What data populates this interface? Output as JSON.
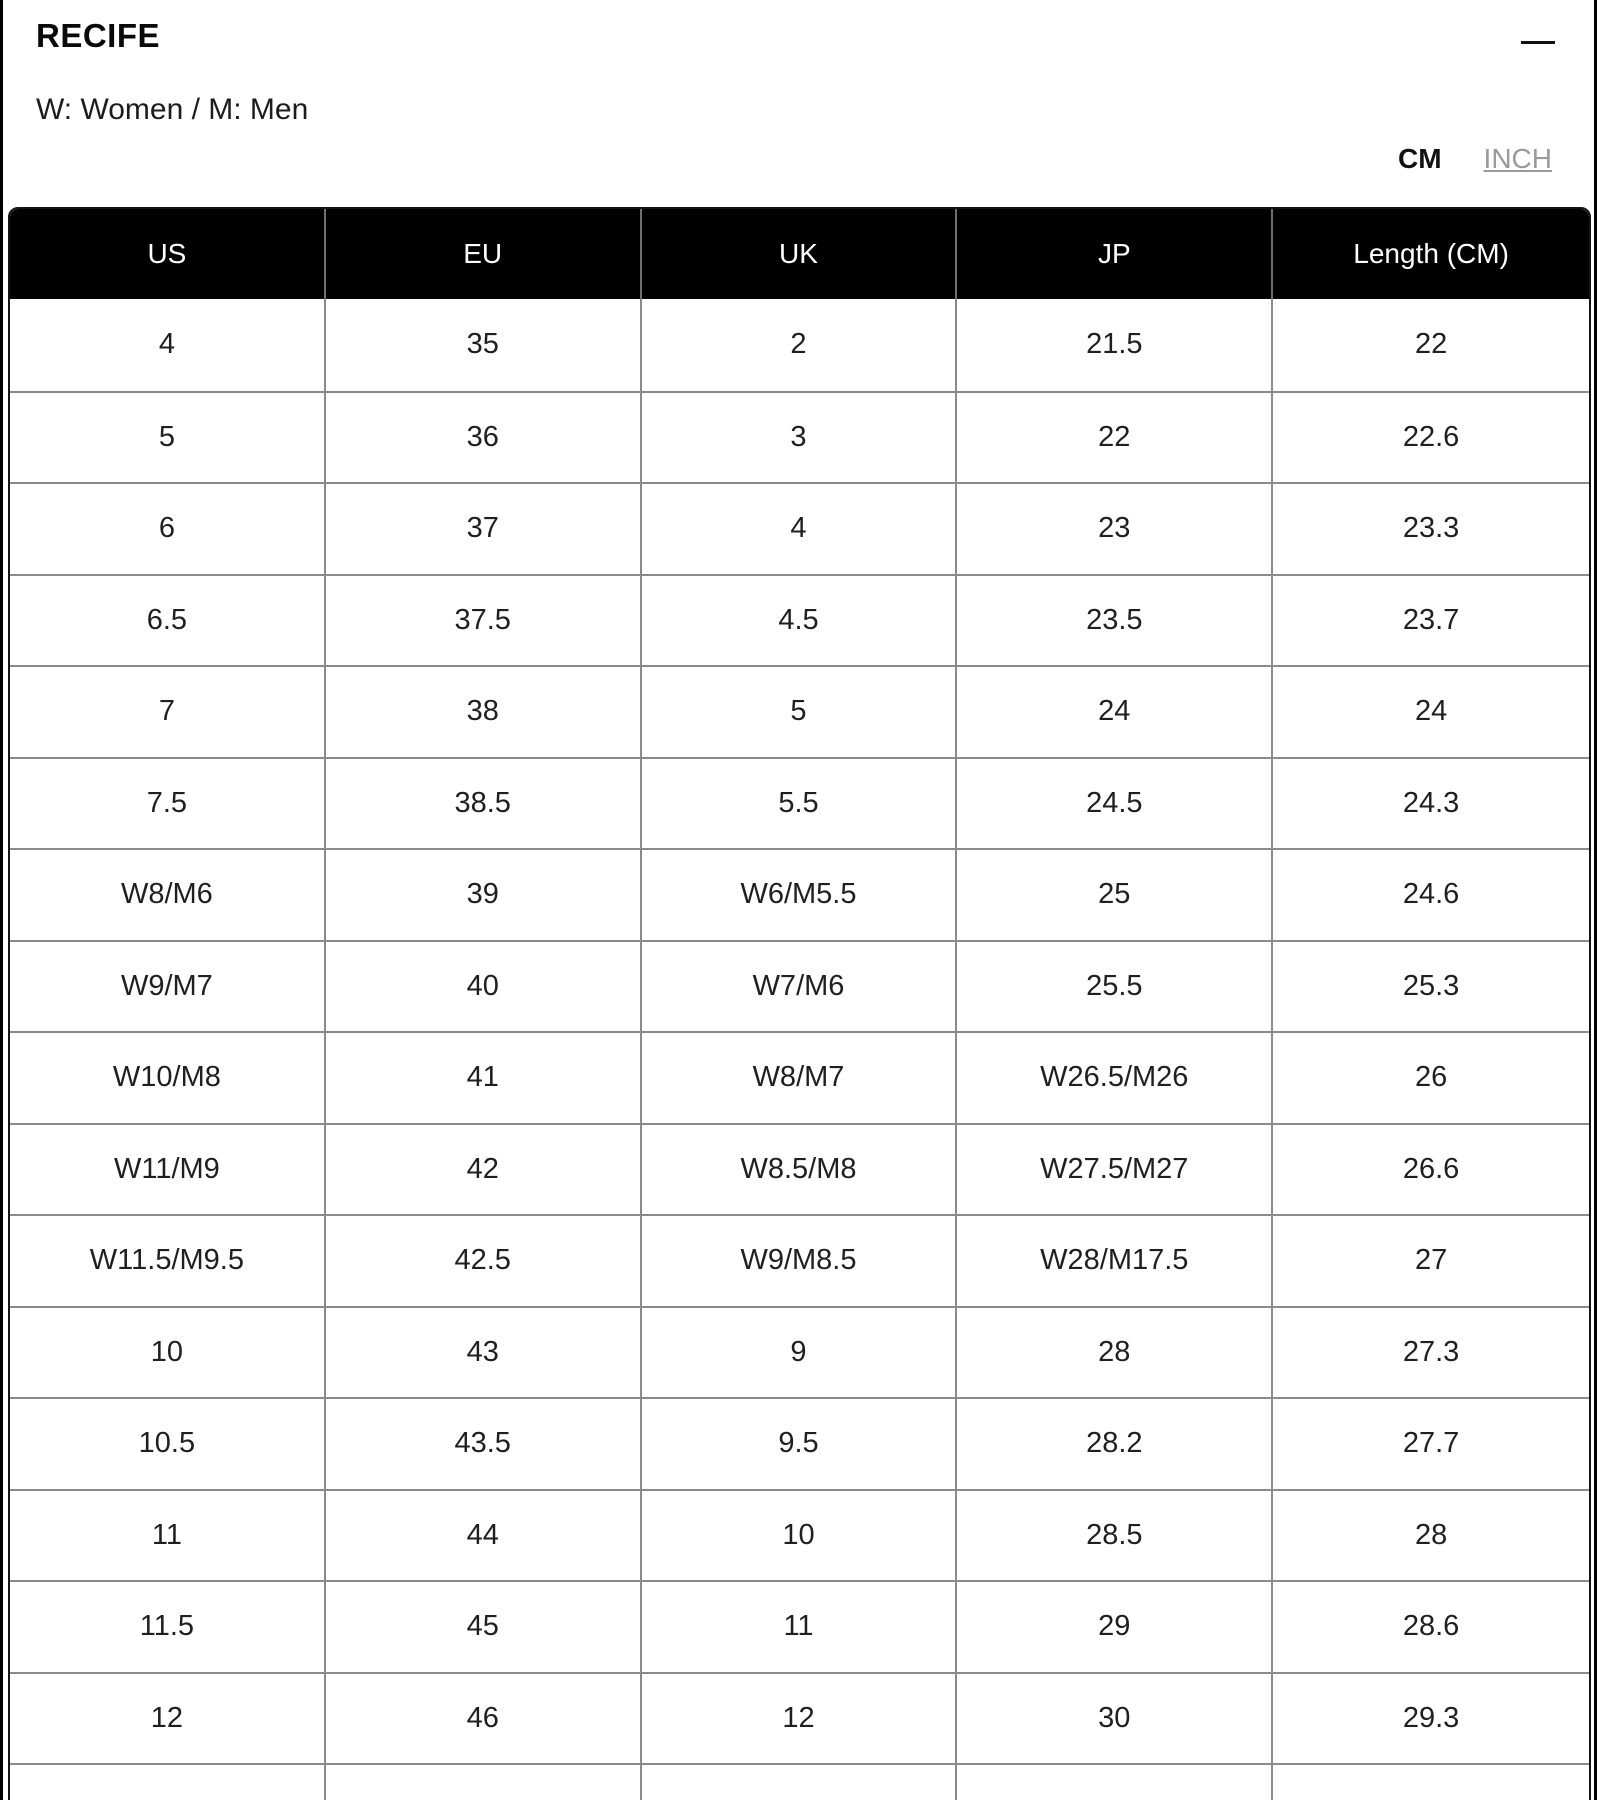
{
  "panel": {
    "title": "RECIFE",
    "legend": "W: Women / M: Men"
  },
  "unit_toggle": {
    "cm_label": "CM",
    "inch_label": "INCH",
    "selected": "CM",
    "selected_color": "#111111",
    "unselected_color": "#9a9a9a"
  },
  "table": {
    "header_bg": "#000000",
    "header_text_color": "#ffffff",
    "divider_color": "#8a8a8a",
    "columns": [
      "US",
      "EU",
      "UK",
      "JP",
      "Length (CM)"
    ],
    "rows": [
      [
        "4",
        "35",
        "2",
        "21.5",
        "22"
      ],
      [
        "5",
        "36",
        "3",
        "22",
        "22.6"
      ],
      [
        "6",
        "37",
        "4",
        "23",
        "23.3"
      ],
      [
        "6.5",
        "37.5",
        "4.5",
        "23.5",
        "23.7"
      ],
      [
        "7",
        "38",
        "5",
        "24",
        "24"
      ],
      [
        "7.5",
        "38.5",
        "5.5",
        "24.5",
        "24.3"
      ],
      [
        "W8/M6",
        "39",
        "W6/M5.5",
        "25",
        "24.6"
      ],
      [
        "W9/M7",
        "40",
        "W7/M6",
        "25.5",
        "25.3"
      ],
      [
        "W10/M8",
        "41",
        "W8/M7",
        "W26.5/M26",
        "26"
      ],
      [
        "W11/M9",
        "42",
        "W8.5/M8",
        "W27.5/M27",
        "26.6"
      ],
      [
        "W11.5/M9.5",
        "42.5",
        "W9/M8.5",
        "W28/M17.5",
        "27"
      ],
      [
        "10",
        "43",
        "9",
        "28",
        "27.3"
      ],
      [
        "10.5",
        "43.5",
        "9.5",
        "28.2",
        "27.7"
      ],
      [
        "11",
        "44",
        "10",
        "28.5",
        "28"
      ],
      [
        "11.5",
        "45",
        "11",
        "29",
        "28.6"
      ],
      [
        "12",
        "46",
        "12",
        "30",
        "29.3"
      ],
      [
        "",
        "",
        "",
        "",
        ""
      ]
    ]
  }
}
